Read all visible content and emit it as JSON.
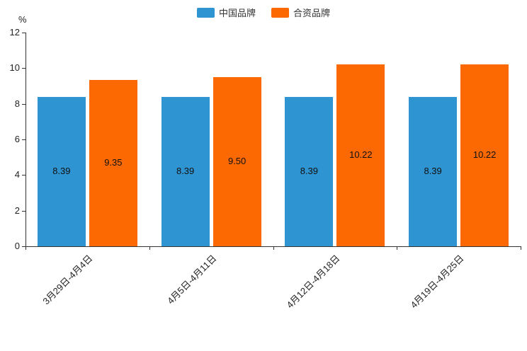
{
  "chart_data": {
    "type": "bar",
    "title": "",
    "categories": [
      "3月29日-4月4日",
      "4月5日-4月11日",
      "4月12日-4月18日",
      "4月19日-4月25日"
    ],
    "series": [
      {
        "name": "中国品牌",
        "color": "#2e94d2",
        "values": [
          8.39,
          8.39,
          8.39,
          8.39
        ]
      },
      {
        "name": "合资品牌",
        "color": "#fc6903",
        "values": [
          9.35,
          9.5,
          10.22,
          10.22
        ]
      }
    ],
    "xlabel": "",
    "ylabel": "%",
    "ylim": [
      0,
      12
    ],
    "ytick_step": 2,
    "grid": false,
    "legend_position": "top-center",
    "value_label_decimals": 2
  }
}
